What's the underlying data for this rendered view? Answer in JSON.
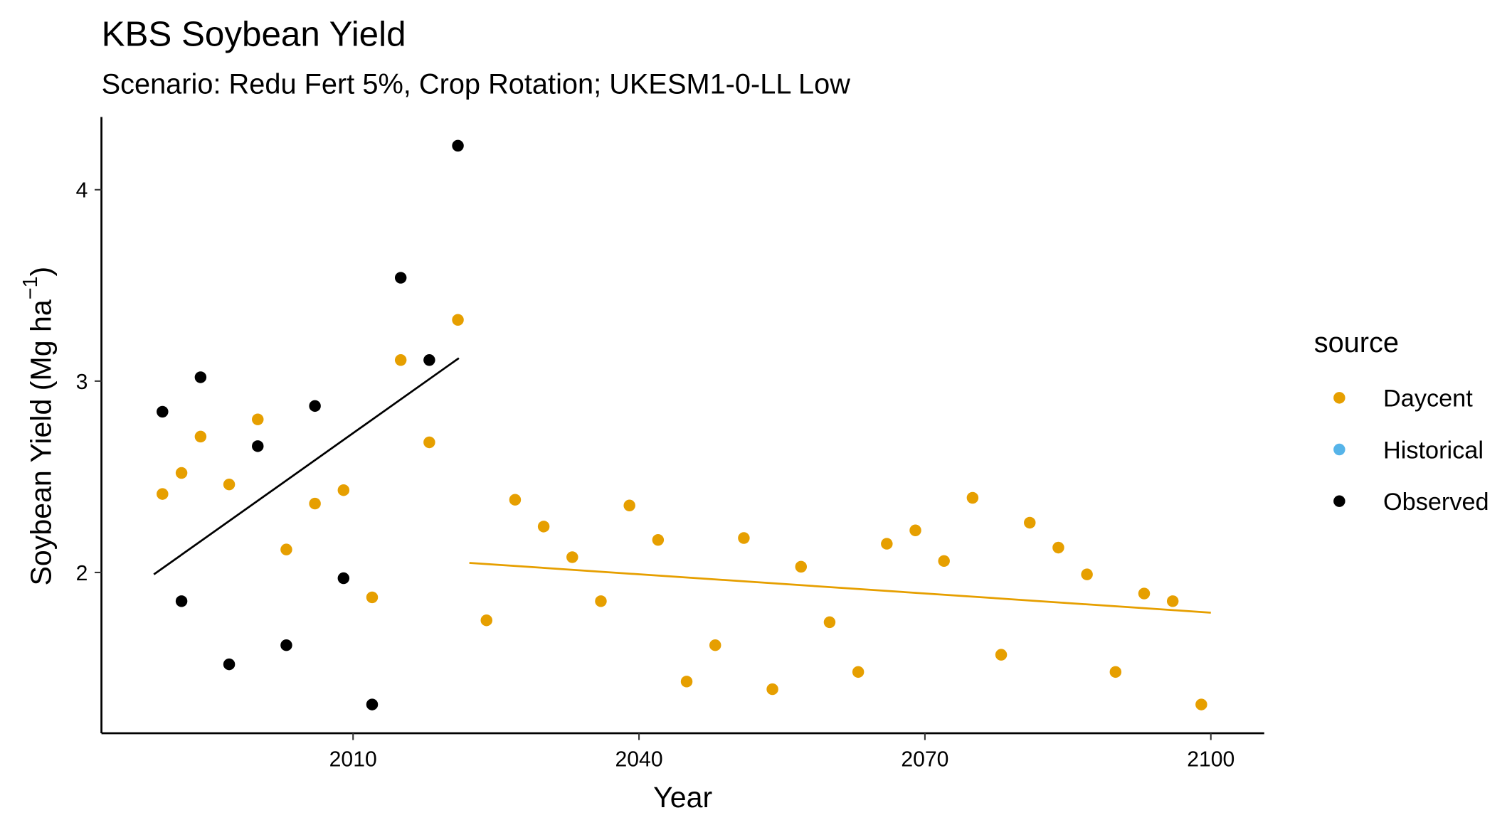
{
  "chart_data": {
    "type": "scatter",
    "title": "KBS Soybean Yield",
    "subtitle": "Scenario: Redu Fert 5%, Crop Rotation; UKESM1-0-LL Low",
    "x_label": "Year",
    "y_label": "Soybean Yield (Mg ha",
    "y_label_sup": "−1",
    "y_label_end": ")",
    "legend_title": "source",
    "legend_position": "right",
    "xlim": [
      1983.6,
      2105.6
    ],
    "ylim": [
      1.16,
      4.38
    ],
    "xticks": [
      2010,
      2040,
      2070,
      2100
    ],
    "yticks": [
      2,
      3,
      4
    ],
    "series": [
      {
        "name": "Daycent",
        "color": "#E69F00",
        "x": [
          1990,
          1992,
          1994,
          1997,
          2000,
          2003,
          2006,
          2009,
          2012,
          2015,
          2018,
          2021,
          2024,
          2027,
          2030,
          2033,
          2036,
          2039,
          2042,
          2045,
          2048,
          2051,
          2054,
          2057,
          2060,
          2063,
          2066,
          2069,
          2072,
          2075,
          2078,
          2081,
          2084,
          2087,
          2090,
          2093,
          2096,
          2099
        ],
        "values": [
          2.41,
          2.52,
          2.71,
          2.46,
          2.8,
          2.12,
          2.36,
          2.43,
          1.87,
          3.11,
          2.68,
          3.32,
          1.75,
          2.38,
          2.24,
          2.08,
          1.85,
          2.35,
          2.17,
          1.43,
          1.62,
          2.18,
          1.39,
          2.03,
          1.74,
          1.48,
          2.15,
          2.22,
          2.06,
          2.39,
          1.57,
          2.26,
          2.13,
          1.99,
          1.48,
          1.89,
          1.85,
          1.31
        ]
      },
      {
        "name": "Historical",
        "color": "#56B4E9",
        "x": [],
        "values": []
      },
      {
        "name": "Observed",
        "color": "#000000",
        "x": [
          1990,
          1992,
          1994,
          1997,
          2000,
          2003,
          2006,
          2009,
          2012,
          2015,
          2018,
          2021
        ],
        "values": [
          2.84,
          1.85,
          3.02,
          1.52,
          2.66,
          1.62,
          2.87,
          1.97,
          1.31,
          3.54,
          3.11,
          4.23
        ]
      }
    ],
    "trend_lines": [
      {
        "color": "#000000",
        "x": [
          1989.1,
          2021.1
        ],
        "values": [
          1.99,
          3.12
        ]
      },
      {
        "color": "#E69F00",
        "x": [
          2022.2,
          2100
        ],
        "values": [
          2.05,
          1.79
        ]
      }
    ]
  }
}
